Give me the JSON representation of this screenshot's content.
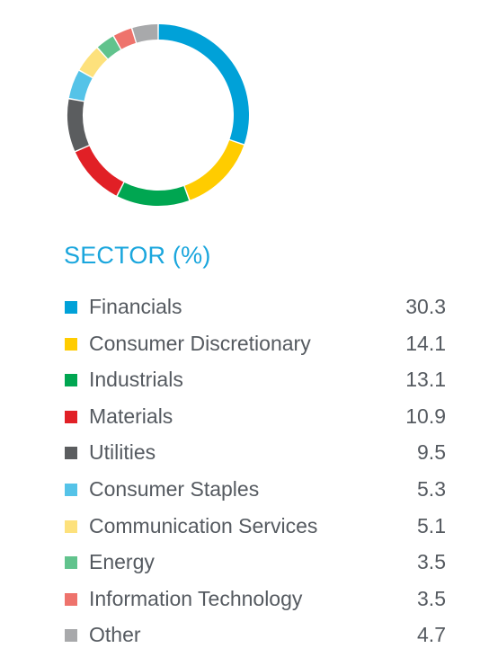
{
  "chart_data": {
    "type": "pie",
    "title": "SECTOR (%)",
    "categories": [
      "Financials",
      "Consumer Discretionary",
      "Industrials",
      "Materials",
      "Utilities",
      "Consumer Staples",
      "Communication Services",
      "Energy",
      "Information Technology",
      "Other"
    ],
    "values": [
      "30.3",
      "14.1",
      "13.1",
      "10.9",
      "9.5",
      "5.3",
      "5.1",
      "3.5",
      "3.5",
      "4.7"
    ],
    "colors": [
      "#00a1d8",
      "#ffcc00",
      "#00a651",
      "#e12026",
      "#5b5d5f",
      "#55c3e8",
      "#fde17c",
      "#61c38d",
      "#ee736c",
      "#a8a9ab"
    ],
    "legend_position": "below"
  }
}
